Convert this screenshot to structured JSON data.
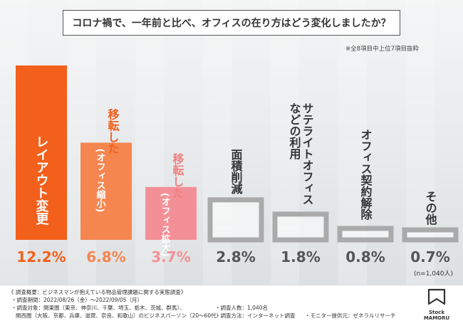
{
  "header": {
    "question": "コロナ禍で、一年前と比べ、オフィスの在り方はどう変化しましたか？",
    "note": "※全8項目中上位7項目抜粋"
  },
  "chart_data": {
    "type": "bar",
    "categories": [
      "レイアウト変更",
      "移転した(オフィス縮小)",
      "移転した(オフィス拡大)",
      "面積削減",
      "サテライトオフィスなどの利用",
      "オフィス契約解除",
      "その他"
    ],
    "values": [
      12.2,
      6.8,
      3.7,
      2.8,
      1.8,
      0.8,
      0.7
    ],
    "value_labels": [
      "12.2%",
      "6.8%",
      "3.7%",
      "2.8%",
      "1.8%",
      "0.8%",
      "0.7%"
    ],
    "bar_colors": [
      "#f2601c",
      "#f58650",
      "#f39097",
      "#a8a8a8",
      "#a8a8a8",
      "#a8a8a8",
      "#a8a8a8"
    ],
    "category_lines": [
      [
        {
          "t": "レイアウト変更",
          "c": "#ffffff"
        }
      ],
      [
        {
          "t": "移転した",
          "c": "#f2601c"
        },
        {
          "t": "(オフィス縮小)",
          "c": "#ffffff"
        }
      ],
      [
        {
          "t": "移転した",
          "c": "#f08080"
        },
        {
          "t": "(オフィス拡大)",
          "c": "#ffffff"
        }
      ],
      [
        {
          "t": "面積削減",
          "c": "#333333"
        }
      ],
      [
        {
          "t": "サテライトオフィス",
          "c": "#333333"
        },
        {
          "t": "などの利用",
          "c": "#333333"
        }
      ],
      [
        {
          "t": "オフィス契約解除",
          "c": "#333333"
        }
      ],
      [
        {
          "t": "その他",
          "c": "#333333"
        }
      ]
    ],
    "ylim": [
      0,
      12.2
    ],
    "n_label": "(n=1,040人)"
  },
  "footer": {
    "line1": "《 調査概要：ビジネスマンが抱えている物品管理課題に関する実態調査》",
    "line2": "・調査期間：2022/08/26（金）〜2022/09/05（月）",
    "line3": "・調査対象：関東圏（東京、神奈川、千葉、埼玉、栃木、茨城、群馬）、",
    "line4": "関西圏（大阪、京都、兵庫、滋賀、奈良、和歌山）のビジネスパーソン（20〜60代）",
    "people": "・調査人数：1,040名",
    "method": "・調査方法：インターネット調査",
    "provider": "・モニター提供元：ゼネラルリサーチ"
  },
  "logo": {
    "text": "Stock MAMORU"
  }
}
